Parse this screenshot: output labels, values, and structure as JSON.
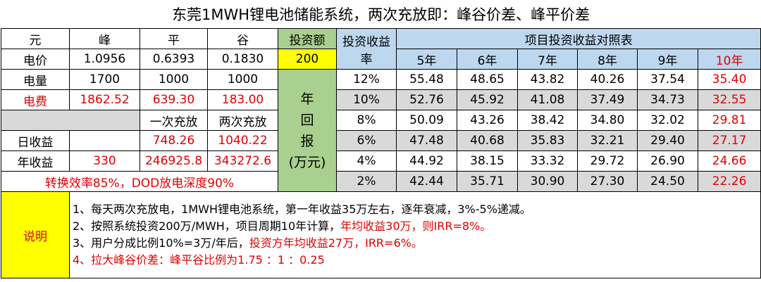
{
  "title": "东莞1MWH锂电池储能系统，两次充放即：峰谷价差、峰平价差",
  "price_table": {
    "header": [
      "元",
      "峰",
      "平",
      "谷"
    ],
    "price_row": [
      "电价",
      "1.0956",
      "0.6393",
      "0.1830"
    ],
    "volume_row": [
      "电量",
      "1700",
      "1000",
      "1000"
    ],
    "cost_row": [
      "电费",
      "1862.52",
      "639.30",
      "183.00"
    ],
    "charge_modes": [
      "一次充放",
      "两次充放"
    ],
    "daily_row": [
      "日收益",
      "748.26",
      "1040.22"
    ],
    "annual_row": [
      "年收益",
      "330",
      "246925.8",
      "343272.6"
    ],
    "efficiency_note": "转换效率85%，DOD放电深度90%"
  },
  "investment": {
    "label": "投资额",
    "value": "200",
    "return_label": [
      "年",
      "回",
      "报",
      "(万元)"
    ]
  },
  "returns": {
    "rate_label": "投资收益率",
    "title": "项目投资收益对照表",
    "years": [
      "5年",
      "6年",
      "7年",
      "8年",
      "9年",
      "10年"
    ],
    "rows": [
      {
        "rate": "12%",
        "values": [
          "55.48",
          "48.65",
          "43.82",
          "40.26",
          "37.54",
          "35.40"
        ]
      },
      {
        "rate": "10%",
        "values": [
          "52.76",
          "45.92",
          "41.08",
          "37.49",
          "34.73",
          "32.55"
        ]
      },
      {
        "rate": "8%",
        "values": [
          "50.09",
          "43.26",
          "38.42",
          "34.80",
          "32.02",
          "29.81"
        ]
      },
      {
        "rate": "6%",
        "values": [
          "47.48",
          "40.68",
          "35.83",
          "32.21",
          "29.40",
          "27.17"
        ]
      },
      {
        "rate": "4%",
        "values": [
          "44.92",
          "38.15",
          "33.32",
          "29.72",
          "26.90",
          "24.66"
        ]
      },
      {
        "rate": "2%",
        "values": [
          "42.44",
          "35.71",
          "30.90",
          "27.30",
          "24.50",
          "22.26"
        ]
      }
    ]
  },
  "notes": {
    "label": "说明",
    "lines": [
      [
        {
          "text": "1、每天两次充放电，1MWH锂电池系统，第一年收益35万左右，逐年衰减，3%-5%递减。"
        }
      ],
      [
        {
          "text": "2、按照系统投资200万/MWH，项目周期10年计算，"
        },
        {
          "text": "年均收益30万，则IRR=8%。",
          "color": "#e00000"
        }
      ],
      [
        {
          "text": "3、用户分成比例10%=3万/年后，"
        },
        {
          "text": "投资方年均收益27万，IRR=6%。",
          "color": "#e00000"
        }
      ],
      [
        {
          "text": "4、拉大峰谷价差：峰平谷比例为1.75 ：1 ：0.25",
          "color": "#e00000"
        }
      ]
    ]
  }
}
